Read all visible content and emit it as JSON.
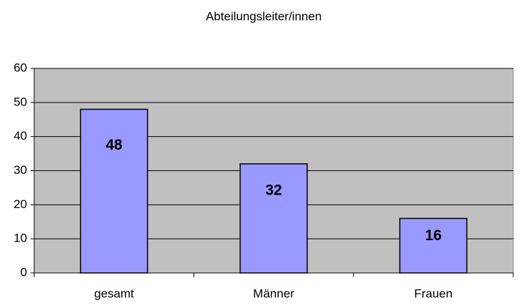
{
  "chart_data": {
    "type": "bar",
    "title": "Abteilungsleiter/innen",
    "categories": [
      "gesamt",
      "Männer",
      "Frauen"
    ],
    "values": [
      48,
      32,
      16
    ],
    "color": "#9999ff",
    "ylim": [
      0,
      60
    ],
    "yticks": [
      0,
      10,
      20,
      30,
      40,
      50,
      60
    ],
    "grid": true
  }
}
